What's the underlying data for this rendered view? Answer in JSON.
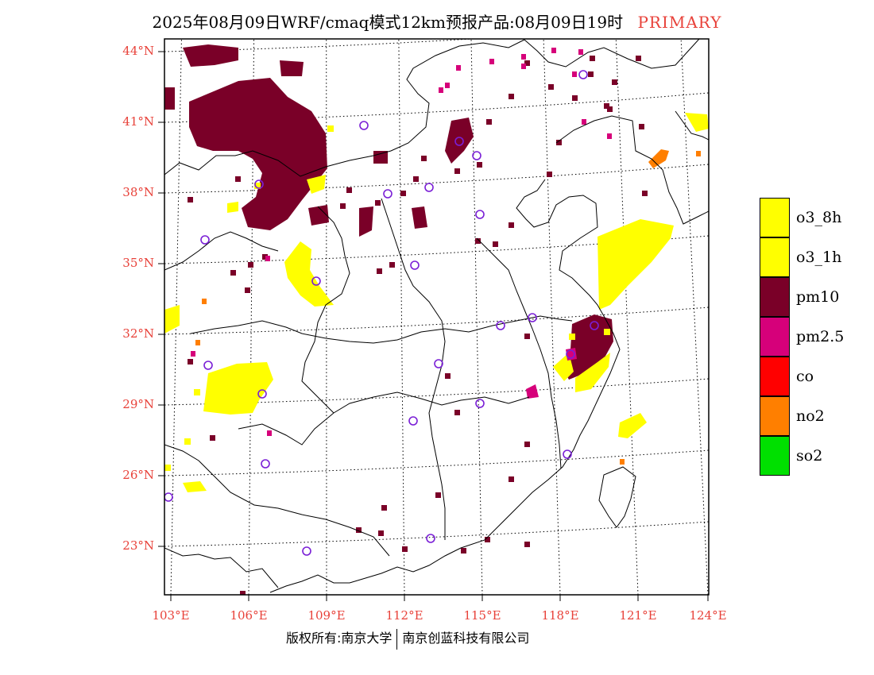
{
  "title": {
    "main": "2025年08月09日WRF/cmaq模式12km预报产品:08月09日19时",
    "tag": "PRIMARY"
  },
  "axes": {
    "lat_labels": [
      "44°N",
      "41°N",
      "38°N",
      "35°N",
      "32°N",
      "29°N",
      "26°N",
      "23°N"
    ],
    "lon_labels": [
      "103°E",
      "106°E",
      "109°E",
      "112°E",
      "115°E",
      "118°E",
      "121°E",
      "124°E"
    ],
    "lat_values": [
      44,
      41,
      38,
      35,
      32,
      29,
      26,
      23
    ],
    "lon_values": [
      103,
      106,
      109,
      112,
      115,
      118,
      121,
      124
    ],
    "label_color": "#e8423a"
  },
  "legend": [
    {
      "label": "o3_8h",
      "color": "#ffff00"
    },
    {
      "label": "o3_1h",
      "color": "#ffff00"
    },
    {
      "label": "pm10",
      "color": "#7a0028"
    },
    {
      "label": "pm2.5",
      "color": "#d6007a"
    },
    {
      "label": "co",
      "color": "#ff0000"
    },
    {
      "label": "no2",
      "color": "#ff7f00"
    },
    {
      "label": "so2",
      "color": "#00e000"
    }
  ],
  "station_marker": {
    "shape": "circle",
    "color": "#7a1fd6"
  },
  "footer": {
    "copyright": "版权所有:南京大学",
    "company": "南京创蓝科技有限公司"
  }
}
